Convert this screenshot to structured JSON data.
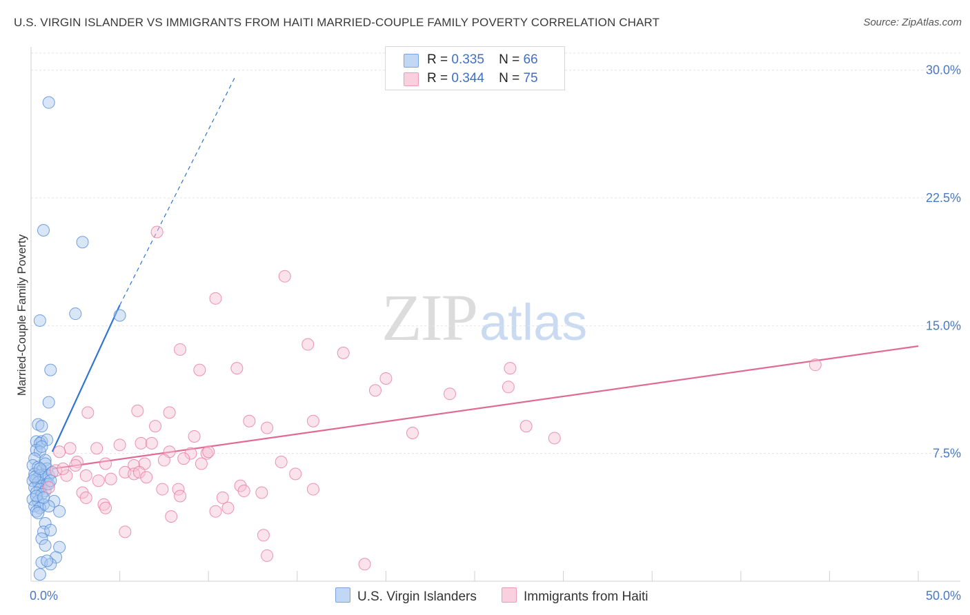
{
  "title": "U.S. VIRGIN ISLANDER VS IMMIGRANTS FROM HAITI MARRIED-COUPLE FAMILY POVERTY CORRELATION CHART",
  "source": "Source: ZipAtlas.com",
  "watermark": {
    "zip": "ZIP",
    "atlas": "atlas"
  },
  "colors": {
    "blue": "#5b8fd8",
    "blue_fill": "#a9c7f0",
    "blue_line": "#2e74d0",
    "pink": "#e97fa2",
    "pink_fill": "#f6c1d2",
    "pink_line": "#e06a94",
    "tick": "#4a78c2"
  },
  "legend_top": [
    {
      "r_label": "R =",
      "r_value": "0.335",
      "n_label": "N =",
      "n_value": "66",
      "color": "blue"
    },
    {
      "r_label": "R =",
      "r_value": "0.344",
      "n_label": "N =",
      "n_value": "75",
      "color": "pink"
    }
  ],
  "chart_data": {
    "type": "scatter",
    "title": "U.S. VIRGIN ISLANDER VS IMMIGRANTS FROM HAITI MARRIED-COUPLE FAMILY POVERTY CORRELATION CHART",
    "xlabel": "",
    "ylabel": "Married-Couple Family Poverty",
    "xlim": [
      0,
      50
    ],
    "ylim": [
      0,
      31
    ],
    "x_tick_labels": [
      {
        "value": 0,
        "label": "0.0%"
      },
      {
        "value": 50,
        "label": "50.0%"
      }
    ],
    "y_ticks": [
      {
        "value": 7.5,
        "label": "7.5%"
      },
      {
        "value": 15,
        "label": "15.0%"
      },
      {
        "value": 22.5,
        "label": "22.5%"
      },
      {
        "value": 30,
        "label": "30.0%"
      }
    ],
    "x_minor_ticks": [
      5,
      10,
      15,
      20,
      25,
      30,
      35,
      40,
      45,
      50
    ],
    "grid": true,
    "legend": [
      "U.S. Virgin Islanders",
      "Immigrants from Haiti"
    ],
    "series": [
      {
        "name": "U.S. Virgin Islanders",
        "color": "blue",
        "trend": {
          "x0": 1.2,
          "y0": 7.6,
          "x1": 5.0,
          "y1": 16.2,
          "dash_to_x": 11.5,
          "dash_to_y": 29.6
        },
        "points": [
          [
            1.0,
            28.1
          ],
          [
            0.7,
            20.6
          ],
          [
            2.9,
            19.9
          ],
          [
            2.5,
            15.7
          ],
          [
            0.5,
            15.3
          ],
          [
            5.0,
            15.6
          ],
          [
            1.1,
            12.4
          ],
          [
            1.0,
            10.5
          ],
          [
            0.4,
            9.2
          ],
          [
            0.6,
            9.1
          ],
          [
            0.3,
            8.2
          ],
          [
            0.6,
            8.2
          ],
          [
            0.5,
            8.1
          ],
          [
            0.9,
            8.3
          ],
          [
            0.3,
            7.7
          ],
          [
            0.5,
            7.6
          ],
          [
            0.2,
            7.2
          ],
          [
            0.8,
            7.1
          ],
          [
            0.1,
            6.8
          ],
          [
            0.4,
            6.7
          ],
          [
            0.6,
            6.5
          ],
          [
            0.9,
            6.6
          ],
          [
            0.2,
            6.3
          ],
          [
            0.5,
            6.2
          ],
          [
            0.3,
            6.0
          ],
          [
            0.7,
            6.1
          ],
          [
            1.0,
            6.2
          ],
          [
            1.2,
            6.4
          ],
          [
            0.1,
            5.9
          ],
          [
            0.4,
            5.8
          ],
          [
            0.6,
            5.6
          ],
          [
            0.9,
            5.7
          ],
          [
            0.2,
            5.5
          ],
          [
            0.5,
            5.4
          ],
          [
            0.8,
            5.3
          ],
          [
            1.0,
            5.7
          ],
          [
            0.3,
            5.2
          ],
          [
            0.6,
            5.1
          ],
          [
            0.1,
            4.8
          ],
          [
            0.4,
            4.7
          ],
          [
            0.7,
            4.5
          ],
          [
            1.3,
            4.7
          ],
          [
            0.2,
            4.4
          ],
          [
            0.5,
            4.3
          ],
          [
            1.0,
            4.4
          ],
          [
            0.3,
            4.1
          ],
          [
            1.6,
            4.1
          ],
          [
            0.8,
            3.4
          ],
          [
            0.7,
            2.9
          ],
          [
            1.1,
            3.0
          ],
          [
            0.6,
            2.5
          ],
          [
            0.8,
            2.1
          ],
          [
            1.6,
            2.0
          ],
          [
            1.4,
            1.4
          ],
          [
            0.6,
            1.1
          ],
          [
            1.1,
            1.0
          ],
          [
            0.9,
            1.2
          ],
          [
            0.5,
            0.4
          ],
          [
            0.2,
            6.1
          ],
          [
            0.6,
            7.9
          ],
          [
            0.3,
            5.0
          ],
          [
            0.8,
            6.9
          ],
          [
            0.4,
            4.0
          ],
          [
            0.7,
            4.9
          ],
          [
            1.1,
            5.9
          ],
          [
            0.5,
            6.6
          ]
        ]
      },
      {
        "name": "Immigrants from Haiti",
        "color": "pink",
        "trend": {
          "x0": 1.2,
          "y0": 6.6,
          "x1": 50.0,
          "y1": 13.8
        },
        "points": [
          [
            7.1,
            20.5
          ],
          [
            14.3,
            17.9
          ],
          [
            10.4,
            16.6
          ],
          [
            8.4,
            13.6
          ],
          [
            15.6,
            13.9
          ],
          [
            17.6,
            13.4
          ],
          [
            9.5,
            12.4
          ],
          [
            11.6,
            12.5
          ],
          [
            27.0,
            12.5
          ],
          [
            20.0,
            11.9
          ],
          [
            19.4,
            11.2
          ],
          [
            23.6,
            11.0
          ],
          [
            26.9,
            11.4
          ],
          [
            44.2,
            12.7
          ],
          [
            3.2,
            9.9
          ],
          [
            6.0,
            10.0
          ],
          [
            7.8,
            9.9
          ],
          [
            12.3,
            9.4
          ],
          [
            13.3,
            9.0
          ],
          [
            15.9,
            9.4
          ],
          [
            7.0,
            9.1
          ],
          [
            21.5,
            8.7
          ],
          [
            27.9,
            9.1
          ],
          [
            29.5,
            8.4
          ],
          [
            2.2,
            7.8
          ],
          [
            3.7,
            7.8
          ],
          [
            5.0,
            8.0
          ],
          [
            6.2,
            8.1
          ],
          [
            6.8,
            8.1
          ],
          [
            9.2,
            8.5
          ],
          [
            1.6,
            7.6
          ],
          [
            4.2,
            6.9
          ],
          [
            5.8,
            6.8
          ],
          [
            6.4,
            6.9
          ],
          [
            7.8,
            7.6
          ],
          [
            9.0,
            7.5
          ],
          [
            9.9,
            7.5
          ],
          [
            10.0,
            7.6
          ],
          [
            7.5,
            7.1
          ],
          [
            14.1,
            7.0
          ],
          [
            2.6,
            7.0
          ],
          [
            1.4,
            6.5
          ],
          [
            2.0,
            6.2
          ],
          [
            3.1,
            6.2
          ],
          [
            5.3,
            6.4
          ],
          [
            5.8,
            6.3
          ],
          [
            6.1,
            6.4
          ],
          [
            8.6,
            7.2
          ],
          [
            9.6,
            6.9
          ],
          [
            3.8,
            5.9
          ],
          [
            4.5,
            6.0
          ],
          [
            6.5,
            6.1
          ],
          [
            8.3,
            5.4
          ],
          [
            11.8,
            5.6
          ],
          [
            12.0,
            5.3
          ],
          [
            13.0,
            5.2
          ],
          [
            15.9,
            5.4
          ],
          [
            14.9,
            6.3
          ],
          [
            2.9,
            5.2
          ],
          [
            3.1,
            4.9
          ],
          [
            4.1,
            4.5
          ],
          [
            4.2,
            4.3
          ],
          [
            7.4,
            5.4
          ],
          [
            8.4,
            5.0
          ],
          [
            10.8,
            4.9
          ],
          [
            10.4,
            4.1
          ],
          [
            11.1,
            4.3
          ],
          [
            7.9,
            3.8
          ],
          [
            5.3,
            2.9
          ],
          [
            13.1,
            2.7
          ],
          [
            13.3,
            1.5
          ],
          [
            18.8,
            1.0
          ],
          [
            2.5,
            6.8
          ],
          [
            1.0,
            5.5
          ],
          [
            1.8,
            6.6
          ]
        ]
      }
    ]
  },
  "legend_bottom": [
    {
      "label": "U.S. Virgin Islanders",
      "color": "blue"
    },
    {
      "label": "Immigrants from Haiti",
      "color": "pink"
    }
  ]
}
